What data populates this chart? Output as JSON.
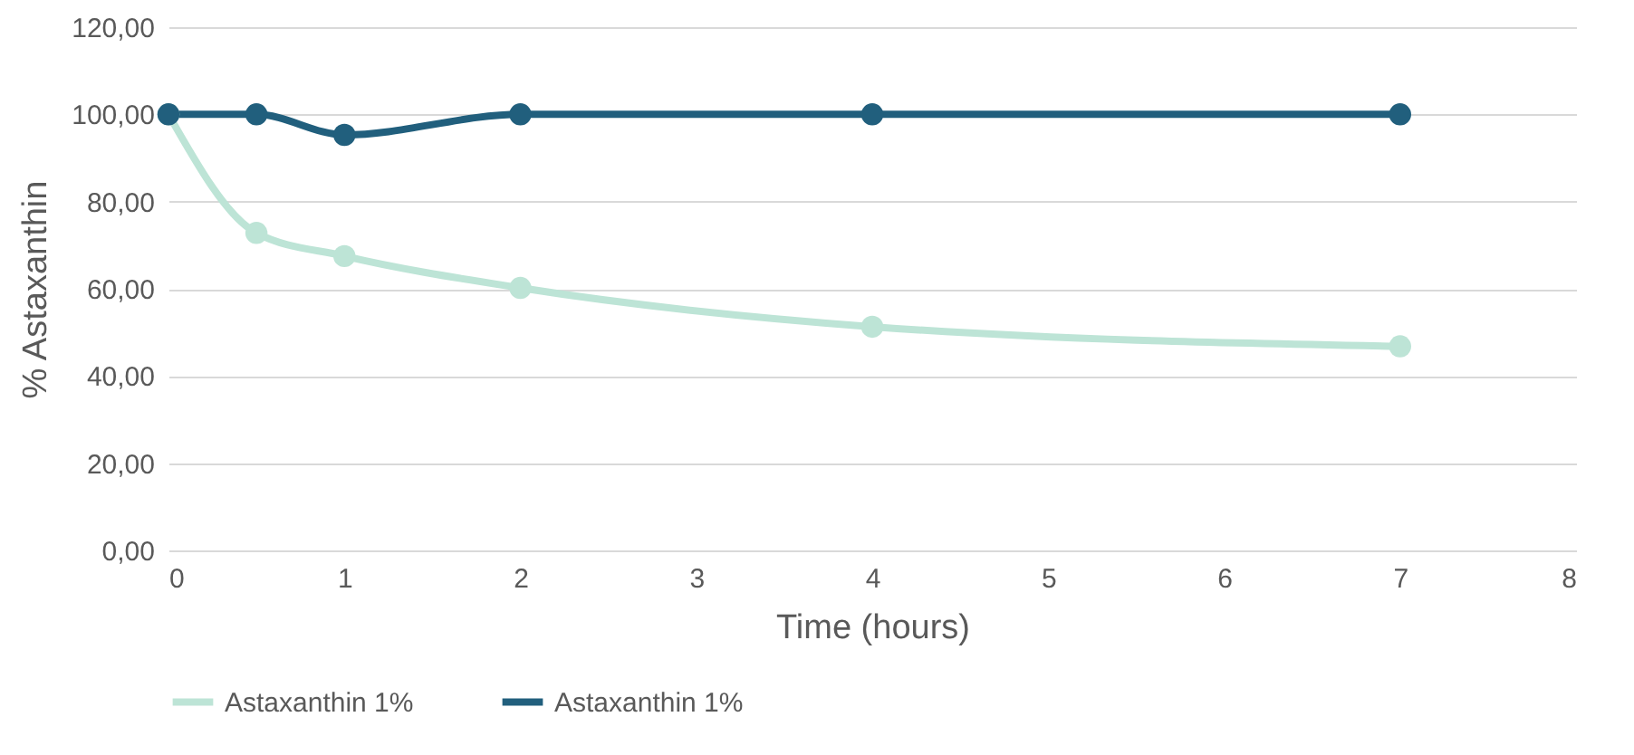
{
  "chart_data": {
    "type": "line",
    "xlabel": "Time (hours)",
    "ylabel": "% Astaxanthin",
    "x": [
      0,
      0.5,
      1,
      2,
      4,
      7
    ],
    "series": [
      {
        "name": "Astaxanthin 1%",
        "color": "#bde4d6",
        "values": [
          100,
          72.8,
          67.5,
          60.2,
          51.3,
          46.8
        ]
      },
      {
        "name": "Astaxanthin 1%",
        "color": "#215f7d",
        "values": [
          100,
          100,
          95.3,
          100,
          100,
          100
        ]
      }
    ],
    "xlim": [
      0,
      8
    ],
    "xticks": [
      0,
      1,
      2,
      3,
      4,
      5,
      6,
      7,
      8
    ],
    "ylim": [
      0,
      120
    ],
    "yticks": [
      {
        "value": 0,
        "label": "0,00"
      },
      {
        "value": 20,
        "label": "20,00"
      },
      {
        "value": 40,
        "label": "40,00"
      },
      {
        "value": 60,
        "label": "60,00"
      },
      {
        "value": 80,
        "label": "80,00"
      },
      {
        "value": 100,
        "label": "100,00"
      },
      {
        "value": 120,
        "label": "120,00"
      }
    ],
    "grid": "y",
    "legend": "bottom",
    "marker": "circle",
    "line_style": "solid"
  }
}
